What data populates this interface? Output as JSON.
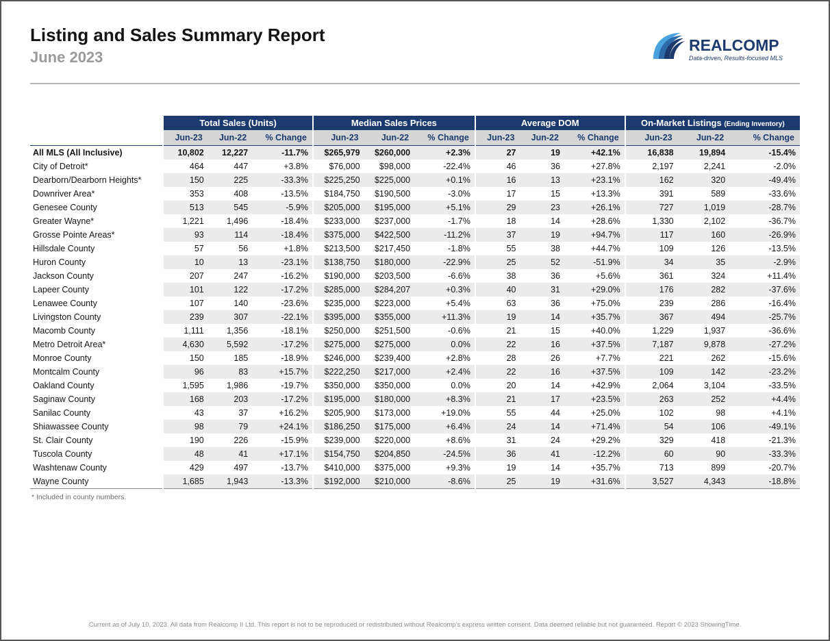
{
  "header": {
    "title": "Listing and Sales Summary Report",
    "subtitle": "June 2023",
    "logo_name": "REALCOMP",
    "logo_tagline": "Data-driven, Results-focused MLS",
    "logo_color": "#1d3a6e",
    "logo_accent": "#4aa3df"
  },
  "groups": [
    {
      "label": "Total Sales (Units)",
      "suffix": ""
    },
    {
      "label": "Median Sales Prices",
      "suffix": ""
    },
    {
      "label": "Average DOM",
      "suffix": ""
    },
    {
      "label": "On-Market Listings",
      "suffix": "(Ending Inventory)"
    }
  ],
  "subheaders": [
    "Jun-23",
    "Jun-22",
    "% Change"
  ],
  "rows": [
    {
      "label": "All MLS (All Inclusive)",
      "total": true,
      "vals": [
        "10,802",
        "12,227",
        "-11.7%",
        "$265,979",
        "$260,000",
        "+2.3%",
        "27",
        "19",
        "+42.1%",
        "16,838",
        "19,894",
        "-15.4%"
      ]
    },
    {
      "label": "City of Detroit*",
      "vals": [
        "464",
        "447",
        "+3.8%",
        "$76,000",
        "$98,000",
        "-22.4%",
        "46",
        "36",
        "+27.8%",
        "2,197",
        "2,241",
        "-2.0%"
      ]
    },
    {
      "label": "Dearborn/Dearborn Heights*",
      "vals": [
        "150",
        "225",
        "-33.3%",
        "$225,250",
        "$225,000",
        "+0.1%",
        "16",
        "13",
        "+23.1%",
        "162",
        "320",
        "-49.4%"
      ]
    },
    {
      "label": "Downriver Area*",
      "vals": [
        "353",
        "408",
        "-13.5%",
        "$184,750",
        "$190,500",
        "-3.0%",
        "17",
        "15",
        "+13.3%",
        "391",
        "589",
        "-33.6%"
      ]
    },
    {
      "label": "Genesee County",
      "vals": [
        "513",
        "545",
        "-5.9%",
        "$205,000",
        "$195,000",
        "+5.1%",
        "29",
        "23",
        "+26.1%",
        "727",
        "1,019",
        "-28.7%"
      ]
    },
    {
      "label": "Greater Wayne*",
      "vals": [
        "1,221",
        "1,496",
        "-18.4%",
        "$233,000",
        "$237,000",
        "-1.7%",
        "18",
        "14",
        "+28.6%",
        "1,330",
        "2,102",
        "-36.7%"
      ]
    },
    {
      "label": "Grosse Pointe Areas*",
      "vals": [
        "93",
        "114",
        "-18.4%",
        "$375,000",
        "$422,500",
        "-11.2%",
        "37",
        "19",
        "+94.7%",
        "117",
        "160",
        "-26.9%"
      ]
    },
    {
      "label": "Hillsdale County",
      "vals": [
        "57",
        "56",
        "+1.8%",
        "$213,500",
        "$217,450",
        "-1.8%",
        "55",
        "38",
        "+44.7%",
        "109",
        "126",
        "-13.5%"
      ]
    },
    {
      "label": "Huron County",
      "vals": [
        "10",
        "13",
        "-23.1%",
        "$138,750",
        "$180,000",
        "-22.9%",
        "25",
        "52",
        "-51.9%",
        "34",
        "35",
        "-2.9%"
      ]
    },
    {
      "label": "Jackson County",
      "vals": [
        "207",
        "247",
        "-16.2%",
        "$190,000",
        "$203,500",
        "-6.6%",
        "38",
        "36",
        "+5.6%",
        "361",
        "324",
        "+11.4%"
      ]
    },
    {
      "label": "Lapeer County",
      "vals": [
        "101",
        "122",
        "-17.2%",
        "$285,000",
        "$284,207",
        "+0.3%",
        "40",
        "31",
        "+29.0%",
        "176",
        "282",
        "-37.6%"
      ]
    },
    {
      "label": "Lenawee County",
      "vals": [
        "107",
        "140",
        "-23.6%",
        "$235,000",
        "$223,000",
        "+5.4%",
        "63",
        "36",
        "+75.0%",
        "239",
        "286",
        "-16.4%"
      ]
    },
    {
      "label": "Livingston County",
      "vals": [
        "239",
        "307",
        "-22.1%",
        "$395,000",
        "$355,000",
        "+11.3%",
        "19",
        "14",
        "+35.7%",
        "367",
        "494",
        "-25.7%"
      ]
    },
    {
      "label": "Macomb County",
      "vals": [
        "1,111",
        "1,356",
        "-18.1%",
        "$250,000",
        "$251,500",
        "-0.6%",
        "21",
        "15",
        "+40.0%",
        "1,229",
        "1,937",
        "-36.6%"
      ]
    },
    {
      "label": "Metro Detroit Area*",
      "vals": [
        "4,630",
        "5,592",
        "-17.2%",
        "$275,000",
        "$275,000",
        "0.0%",
        "22",
        "16",
        "+37.5%",
        "7,187",
        "9,878",
        "-27.2%"
      ]
    },
    {
      "label": "Monroe County",
      "vals": [
        "150",
        "185",
        "-18.9%",
        "$246,000",
        "$239,400",
        "+2.8%",
        "28",
        "26",
        "+7.7%",
        "221",
        "262",
        "-15.6%"
      ]
    },
    {
      "label": "Montcalm County",
      "vals": [
        "96",
        "83",
        "+15.7%",
        "$222,250",
        "$217,000",
        "+2.4%",
        "22",
        "16",
        "+37.5%",
        "109",
        "142",
        "-23.2%"
      ]
    },
    {
      "label": "Oakland County",
      "vals": [
        "1,595",
        "1,986",
        "-19.7%",
        "$350,000",
        "$350,000",
        "0.0%",
        "20",
        "14",
        "+42.9%",
        "2,064",
        "3,104",
        "-33.5%"
      ]
    },
    {
      "label": "Saginaw County",
      "vals": [
        "168",
        "203",
        "-17.2%",
        "$195,000",
        "$180,000",
        "+8.3%",
        "21",
        "17",
        "+23.5%",
        "263",
        "252",
        "+4.4%"
      ]
    },
    {
      "label": "Sanilac County",
      "vals": [
        "43",
        "37",
        "+16.2%",
        "$205,900",
        "$173,000",
        "+19.0%",
        "55",
        "44",
        "+25.0%",
        "102",
        "98",
        "+4.1%"
      ]
    },
    {
      "label": "Shiawassee County",
      "vals": [
        "98",
        "79",
        "+24.1%",
        "$186,250",
        "$175,000",
        "+6.4%",
        "24",
        "14",
        "+71.4%",
        "54",
        "106",
        "-49.1%"
      ]
    },
    {
      "label": "St. Clair County",
      "vals": [
        "190",
        "226",
        "-15.9%",
        "$239,000",
        "$220,000",
        "+8.6%",
        "31",
        "24",
        "+29.2%",
        "329",
        "418",
        "-21.3%"
      ]
    },
    {
      "label": "Tuscola County",
      "vals": [
        "48",
        "41",
        "+17.1%",
        "$154,750",
        "$204,850",
        "-24.5%",
        "36",
        "41",
        "-12.2%",
        "60",
        "90",
        "-33.3%"
      ]
    },
    {
      "label": "Washtenaw County",
      "vals": [
        "429",
        "497",
        "-13.7%",
        "$410,000",
        "$375,000",
        "+9.3%",
        "19",
        "14",
        "+35.7%",
        "713",
        "899",
        "-20.7%"
      ]
    },
    {
      "label": "Wayne County",
      "vals": [
        "1,685",
        "1,943",
        "-13.3%",
        "$192,000",
        "$210,000",
        "-8.6%",
        "25",
        "19",
        "+31.6%",
        "3,527",
        "4,343",
        "-18.8%"
      ]
    }
  ],
  "footnote": "* Included in county numbers.",
  "disclaimer": "Current as of July 10, 2023. All data from Realcomp II Ltd. This report is not to be reproduced or redistributed without Realcomp's express written consent. Data deemed reliable but not guaranteed. Report © 2023 ShowingTime."
}
